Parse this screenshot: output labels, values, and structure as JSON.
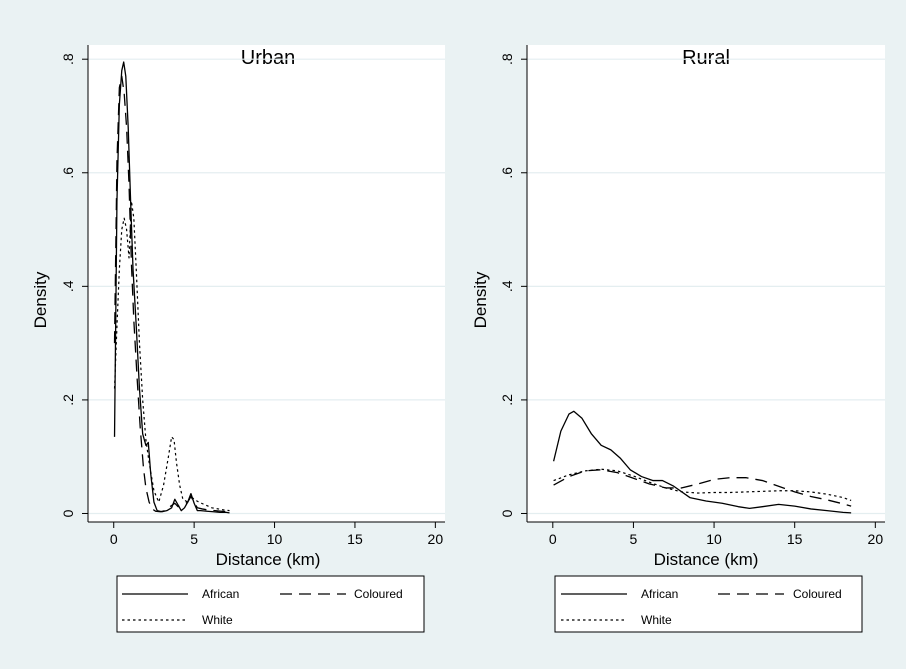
{
  "colors": {
    "outer_background": "#eaf2f3",
    "plot_background": "#ffffff",
    "grid": "#e4eef0",
    "line": "#000000"
  },
  "chart_data": [
    {
      "type": "line",
      "title": "Urban",
      "xlabel": "Distance (km)",
      "ylabel": "Density",
      "xlim": [
        -1.6,
        20.6
      ],
      "ylim": [
        -0.015,
        0.825
      ],
      "xticks": [
        0,
        5,
        10,
        15,
        20
      ],
      "xtick_labels": [
        "0",
        "5",
        "10",
        "15",
        "20"
      ],
      "yticks": [
        0,
        0.2,
        0.4,
        0.6,
        0.8
      ],
      "ytick_labels": [
        "0",
        ".2",
        ".4",
        ".6",
        ".8"
      ],
      "grid": true,
      "legend_position": "bottom",
      "series": [
        {
          "name": "African",
          "style": "solid",
          "x": [
            0.05,
            0.2,
            0.35,
            0.5,
            0.62,
            0.75,
            0.9,
            1.05,
            1.2,
            1.4,
            1.6,
            1.8,
            2.0,
            2.15,
            2.3,
            2.5,
            2.7,
            3.0,
            3.3,
            3.6,
            3.8,
            4.0,
            4.2,
            4.4,
            4.6,
            4.8,
            5.0,
            5.2,
            5.4,
            5.8,
            6.2,
            6.6,
            7.0,
            7.2
          ],
          "y": [
            0.135,
            0.55,
            0.72,
            0.78,
            0.795,
            0.77,
            0.68,
            0.55,
            0.43,
            0.33,
            0.22,
            0.14,
            0.12,
            0.125,
            0.07,
            0.02,
            0.005,
            0.003,
            0.005,
            0.01,
            0.025,
            0.015,
            0.005,
            0.01,
            0.02,
            0.035,
            0.018,
            0.005,
            0.005,
            0.004,
            0.003,
            0.002,
            0.002,
            0.001
          ]
        },
        {
          "name": "Coloured",
          "style": "dashed",
          "x": [
            0.05,
            0.2,
            0.35,
            0.5,
            0.65,
            0.8,
            0.95,
            1.1,
            1.25,
            1.45,
            1.65,
            1.85,
            2.0,
            2.2,
            2.4,
            2.6,
            2.9,
            3.2,
            3.5,
            3.8,
            4.0,
            4.3,
            4.6,
            4.8,
            5.0,
            5.2,
            5.5,
            5.9,
            6.3,
            6.7,
            7.1
          ],
          "y": [
            0.3,
            0.62,
            0.75,
            0.77,
            0.74,
            0.68,
            0.58,
            0.44,
            0.34,
            0.24,
            0.15,
            0.08,
            0.045,
            0.02,
            0.008,
            0.004,
            0.003,
            0.005,
            0.012,
            0.018,
            0.012,
            0.015,
            0.02,
            0.03,
            0.02,
            0.01,
            0.008,
            0.006,
            0.005,
            0.004,
            0.003
          ]
        },
        {
          "name": "White",
          "style": "dotted",
          "x": [
            0.05,
            0.2,
            0.35,
            0.5,
            0.65,
            0.8,
            0.95,
            1.1,
            1.25,
            1.4,
            1.6,
            1.8,
            2.0,
            2.2,
            2.5,
            2.8,
            3.1,
            3.4,
            3.6,
            3.75,
            3.9,
            4.1,
            4.3,
            4.6,
            4.8,
            5.0,
            5.3,
            5.7,
            6.1,
            6.5,
            6.9,
            7.2
          ],
          "y": [
            0.22,
            0.33,
            0.43,
            0.5,
            0.52,
            0.5,
            0.45,
            0.55,
            0.52,
            0.43,
            0.3,
            0.2,
            0.13,
            0.09,
            0.04,
            0.02,
            0.05,
            0.1,
            0.135,
            0.13,
            0.09,
            0.05,
            0.025,
            0.02,
            0.03,
            0.025,
            0.02,
            0.015,
            0.01,
            0.008,
            0.006,
            0.005
          ]
        }
      ],
      "legend": [
        "African",
        "Coloured",
        "White"
      ]
    },
    {
      "type": "line",
      "title": "Rural",
      "xlabel": "Distance (km)",
      "ylabel": "Density",
      "xlim": [
        -1.6,
        20.6
      ],
      "ylim": [
        -0.015,
        0.825
      ],
      "xticks": [
        0,
        5,
        10,
        15,
        20
      ],
      "xtick_labels": [
        "0",
        "5",
        "10",
        "15",
        "20"
      ],
      "yticks": [
        0,
        0.2,
        0.4,
        0.6,
        0.8
      ],
      "ytick_labels": [
        "0",
        ".2",
        ".4",
        ".6",
        ".8"
      ],
      "grid": true,
      "legend_position": "bottom",
      "series": [
        {
          "name": "African",
          "style": "solid",
          "x": [
            0.05,
            0.5,
            1.0,
            1.3,
            1.8,
            2.4,
            3.0,
            3.6,
            4.2,
            4.8,
            5.5,
            6.2,
            6.8,
            7.5,
            8.5,
            9.5,
            10.5,
            11.5,
            12.2,
            13.0,
            14.0,
            15.0,
            16.0,
            17.0,
            18.0,
            18.5
          ],
          "y": [
            0.092,
            0.145,
            0.175,
            0.18,
            0.168,
            0.14,
            0.12,
            0.112,
            0.097,
            0.077,
            0.065,
            0.058,
            0.058,
            0.048,
            0.028,
            0.022,
            0.018,
            0.012,
            0.009,
            0.012,
            0.016,
            0.013,
            0.008,
            0.005,
            0.002,
            0.001
          ]
        },
        {
          "name": "Coloured",
          "style": "dashed",
          "x": [
            0.05,
            1.0,
            2.0,
            3.0,
            4.0,
            5.0,
            6.0,
            7.0,
            8.0,
            9.0,
            10.0,
            11.0,
            12.0,
            13.0,
            14.0,
            15.0,
            16.0,
            17.0,
            18.0,
            18.5
          ],
          "y": [
            0.05,
            0.065,
            0.075,
            0.077,
            0.072,
            0.062,
            0.052,
            0.045,
            0.045,
            0.052,
            0.06,
            0.063,
            0.063,
            0.058,
            0.048,
            0.038,
            0.03,
            0.024,
            0.017,
            0.013
          ]
        },
        {
          "name": "White",
          "style": "dotted",
          "x": [
            0.05,
            1.0,
            2.0,
            3.0,
            4.0,
            5.0,
            6.0,
            7.0,
            8.0,
            9.0,
            10.0,
            11.0,
            12.0,
            13.0,
            14.0,
            15.0,
            16.0,
            17.0,
            18.0,
            18.5
          ],
          "y": [
            0.058,
            0.068,
            0.075,
            0.078,
            0.075,
            0.066,
            0.055,
            0.045,
            0.038,
            0.036,
            0.037,
            0.037,
            0.038,
            0.039,
            0.04,
            0.04,
            0.038,
            0.034,
            0.028,
            0.023
          ]
        }
      ],
      "legend": [
        "African",
        "Coloured",
        "White"
      ]
    }
  ]
}
